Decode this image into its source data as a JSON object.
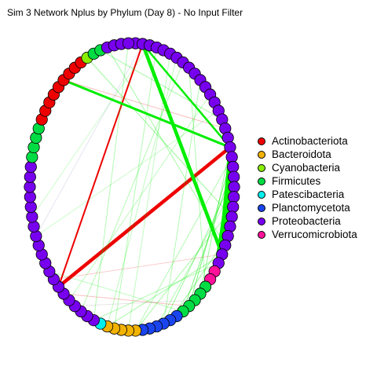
{
  "title": "Sim 3 Network Nplus by Phylum (Day 8) - No Input Filter",
  "legend": [
    {
      "label": "Actinobacteriota",
      "color": "#ee0000"
    },
    {
      "label": "Bacteroidota",
      "color": "#f2b300"
    },
    {
      "label": "Cyanobacteria",
      "color": "#88ee00"
    },
    {
      "label": "Firmicutes",
      "color": "#00dd44"
    },
    {
      "label": "Patescibacteria",
      "color": "#00eeee"
    },
    {
      "label": "Planctomycetota",
      "color": "#1a44ee"
    },
    {
      "label": "Proteobacteria",
      "color": "#7700ee"
    },
    {
      "label": "Verrucomicrobiota",
      "color": "#ff1199"
    }
  ],
  "nodes": [
    "Proteobacteria",
    "Proteobacteria",
    "Proteobacteria",
    "Proteobacteria",
    "Proteobacteria",
    "Proteobacteria",
    "Proteobacteria",
    "Proteobacteria",
    "Proteobacteria",
    "Proteobacteria",
    "Proteobacteria",
    "Proteobacteria",
    "Proteobacteria",
    "Proteobacteria",
    "Proteobacteria",
    "Proteobacteria",
    "Proteobacteria",
    "Proteobacteria",
    "Proteobacteria",
    "Proteobacteria",
    "Proteobacteria",
    "Proteobacteria",
    "Proteobacteria",
    "Proteobacteria",
    "Proteobacteria",
    "Proteobacteria",
    "Proteobacteria",
    "Proteobacteria",
    "Proteobacteria",
    "Proteobacteria",
    "Proteobacteria",
    "Verrucomicrobiota",
    "Verrucomicrobiota",
    "Firmicutes",
    "Firmicutes",
    "Firmicutes",
    "Firmicutes",
    "Firmicutes",
    "Planctomycetota",
    "Planctomycetota",
    "Planctomycetota",
    "Planctomycetota",
    "Planctomycetota",
    "Planctomycetota",
    "Bacteroidota",
    "Bacteroidota",
    "Bacteroidota",
    "Bacteroidota",
    "Bacteroidota",
    "Patescibacteria",
    "Proteobacteria",
    "Proteobacteria",
    "Proteobacteria",
    "Proteobacteria",
    "Proteobacteria",
    "Proteobacteria",
    "Proteobacteria",
    "Proteobacteria",
    "Proteobacteria",
    "Proteobacteria",
    "Proteobacteria",
    "Proteobacteria",
    "Proteobacteria",
    "Proteobacteria",
    "Proteobacteria",
    "Proteobacteria",
    "Proteobacteria",
    "Proteobacteria",
    "Proteobacteria",
    "Proteobacteria",
    "Firmicutes",
    "Firmicutes",
    "Firmicutes",
    "Firmicutes",
    "Actinobacteriota",
    "Actinobacteriota",
    "Actinobacteriota",
    "Actinobacteriota",
    "Actinobacteriota",
    "Actinobacteriota",
    "Actinobacteriota",
    "Actinobacteriota",
    "Actinobacteriota",
    "Cyanobacteria",
    "Firmicutes",
    "Firmicutes",
    "Proteobacteria",
    "Proteobacteria",
    "Proteobacteria",
    "Proteobacteria"
  ],
  "edges": [
    {
      "from": 18,
      "to": 56,
      "color": "#ee0000",
      "weight": 4.5,
      "opacity": 1.0
    },
    {
      "from": 1,
      "to": 56,
      "color": "#ee0000",
      "weight": 2.0,
      "opacity": 1.0
    },
    {
      "from": 1,
      "to": 29,
      "color": "#00ee00",
      "weight": 4.5,
      "opacity": 1.0
    },
    {
      "from": 1,
      "to": 18,
      "color": "#00ee00",
      "weight": 2.5,
      "opacity": 1.0
    },
    {
      "from": 79,
      "to": 18,
      "color": "#00ee00",
      "weight": 3.0,
      "opacity": 1.0
    },
    {
      "from": 18,
      "to": 29,
      "color": "#00ee00",
      "weight": 4.5,
      "opacity": 1.0
    },
    {
      "from": 19,
      "to": 29,
      "color": "#00ee00",
      "weight": 4.0,
      "opacity": 1.0
    },
    {
      "from": 20,
      "to": 28,
      "color": "#00ee00",
      "weight": 3.5,
      "opacity": 1.0
    },
    {
      "from": 21,
      "to": 29,
      "color": "#00ee00",
      "weight": 3.5,
      "opacity": 1.0
    },
    {
      "from": 19,
      "to": 31,
      "color": "#00ee00",
      "weight": 2.0,
      "opacity": 1.0
    },
    {
      "from": 18,
      "to": 30,
      "color": "#00ee00",
      "weight": 3.0,
      "opacity": 1.0
    },
    {
      "from": 19,
      "to": 36,
      "color": "#00ee00",
      "weight": 1.0,
      "opacity": 0.5
    },
    {
      "from": 20,
      "to": 37,
      "color": "#00ee00",
      "weight": 1.0,
      "opacity": 0.5
    },
    {
      "from": 18,
      "to": 34,
      "color": "#00ee00",
      "weight": 1.0,
      "opacity": 0.4
    },
    {
      "from": 21,
      "to": 40,
      "color": "#00ee00",
      "weight": 1.0,
      "opacity": 0.4
    },
    {
      "from": 19,
      "to": 44,
      "color": "#00ee00",
      "weight": 1.0,
      "opacity": 0.3
    },
    {
      "from": 29,
      "to": 48,
      "color": "#00ee00",
      "weight": 1.0,
      "opacity": 0.35
    },
    {
      "from": 30,
      "to": 50,
      "color": "#00ee00",
      "weight": 1.0,
      "opacity": 0.3
    },
    {
      "from": 83,
      "to": 25,
      "color": "#00ee00",
      "weight": 1.0,
      "opacity": 0.4
    },
    {
      "from": 85,
      "to": 15,
      "color": "#00ee00",
      "weight": 1.0,
      "opacity": 0.35
    },
    {
      "from": 86,
      "to": 28,
      "color": "#00ee00",
      "weight": 1.0,
      "opacity": 0.35
    },
    {
      "from": 3,
      "to": 47,
      "color": "#00ee00",
      "weight": 1.0,
      "opacity": 0.3
    },
    {
      "from": 5,
      "to": 45,
      "color": "#00ee00",
      "weight": 1.0,
      "opacity": 0.25
    },
    {
      "from": 7,
      "to": 52,
      "color": "#00ee00",
      "weight": 1.0,
      "opacity": 0.3
    },
    {
      "from": 12,
      "to": 54,
      "color": "#00ee00",
      "weight": 1.0,
      "opacity": 0.25
    },
    {
      "from": 10,
      "to": 40,
      "color": "#00ee00",
      "weight": 1.0,
      "opacity": 0.3
    },
    {
      "from": 24,
      "to": 44,
      "color": "#00ee00",
      "weight": 1.0,
      "opacity": 0.35
    },
    {
      "from": 27,
      "to": 39,
      "color": "#00ee00",
      "weight": 1.0,
      "opacity": 0.4
    },
    {
      "from": 22,
      "to": 41,
      "color": "#00ee00",
      "weight": 1.0,
      "opacity": 0.3
    },
    {
      "from": 89,
      "to": 50,
      "color": "#00ee00",
      "weight": 1.0,
      "opacity": 0.3
    },
    {
      "from": 58,
      "to": 37,
      "color": "#00ee00",
      "weight": 1.0,
      "opacity": 0.25
    },
    {
      "from": 8,
      "to": 33,
      "color": "#00ee00",
      "weight": 1.0,
      "opacity": 0.3
    },
    {
      "from": 62,
      "to": 14,
      "color": "#00ee00",
      "weight": 1.0,
      "opacity": 0.2
    },
    {
      "from": 2,
      "to": 64,
      "color": "#00ee00",
      "weight": 1.0,
      "opacity": 0.2
    },
    {
      "from": 6,
      "to": 48,
      "color": "#00ee00",
      "weight": 1.0,
      "opacity": 0.25
    },
    {
      "from": 16,
      "to": 79,
      "color": "#ee0000",
      "weight": 1.0,
      "opacity": 0.25
    },
    {
      "from": 55,
      "to": 36,
      "color": "#ee0000",
      "weight": 1.0,
      "opacity": 0.25
    },
    {
      "from": 57,
      "to": 29,
      "color": "#ee0000",
      "weight": 1.0,
      "opacity": 0.2
    },
    {
      "from": 1,
      "to": 62,
      "color": "#9999cc",
      "weight": 1.0,
      "opacity": 0.25
    },
    {
      "from": 53,
      "to": 35,
      "color": "#999999",
      "weight": 1.0,
      "opacity": 0.25
    }
  ]
}
